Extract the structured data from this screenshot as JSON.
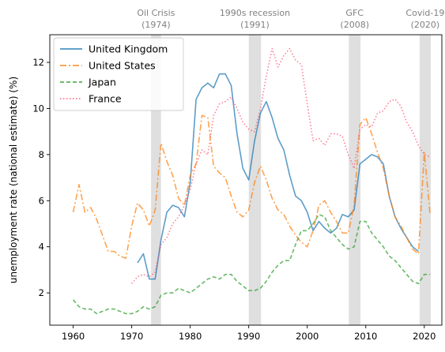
{
  "chart_data": {
    "type": "line",
    "title": "",
    "xlabel": "",
    "ylabel": "unemployment rate (national estimate) (%)",
    "xlim": [
      1956,
      2023
    ],
    "ylim": [
      0.6,
      13.2
    ],
    "xticks": [
      1960,
      1970,
      1980,
      1990,
      2000,
      2010,
      2020
    ],
    "yticks": [
      2,
      4,
      6,
      8,
      10,
      12
    ],
    "grid": false,
    "legend_position": "top-left",
    "events": [
      {
        "name": "Oil Crisis",
        "year_label": "(1974)",
        "start": 1973.3,
        "end": 1975.0
      },
      {
        "name": "1990s recession",
        "year_label": "(1991)",
        "start": 1990.0,
        "end": 1992.1
      },
      {
        "name": "GFC",
        "year_label": "(2008)",
        "start": 2007.1,
        "end": 2009.1
      },
      {
        "name": "Covid-19",
        "year_label": "(2020)",
        "start": 2019.2,
        "end": 2021.1
      }
    ],
    "series": [
      {
        "name": "United Kingdom",
        "color": "#1f77b4",
        "style": "solid",
        "x": [
          1971,
          1972,
          1973,
          1974,
          1975,
          1976,
          1977,
          1978,
          1979,
          1980,
          1981,
          1982,
          1983,
          1984,
          1985,
          1986,
          1987,
          1988,
          1989,
          1990,
          1991,
          1992,
          1993,
          1994,
          1995,
          1996,
          1997,
          1998,
          1999,
          2000,
          2001,
          2002,
          2003,
          2004,
          2005,
          2006,
          2007,
          2008,
          2009,
          2010,
          2011,
          2012,
          2013,
          2014,
          2015,
          2016,
          2017,
          2018,
          2019
        ],
        "y": [
          3.3,
          3.7,
          2.6,
          2.6,
          4.3,
          5.5,
          5.8,
          5.7,
          5.3,
          6.8,
          10.4,
          10.9,
          11.1,
          10.9,
          11.5,
          11.5,
          11.0,
          8.9,
          7.4,
          6.9,
          8.6,
          9.8,
          10.3,
          9.6,
          8.7,
          8.2,
          7.1,
          6.2,
          6.0,
          5.5,
          4.7,
          5.1,
          4.8,
          4.6,
          4.8,
          5.4,
          5.3,
          5.6,
          7.6,
          7.8,
          8.0,
          7.9,
          7.6,
          6.2,
          5.3,
          4.8,
          4.4,
          4.0,
          3.8
        ]
      },
      {
        "name": "United States",
        "color": "#ff7f0e",
        "style": "dashdot",
        "x": [
          1960,
          1961,
          1962,
          1963,
          1964,
          1965,
          1966,
          1967,
          1968,
          1969,
          1970,
          1971,
          1972,
          1973,
          1974,
          1975,
          1976,
          1977,
          1978,
          1979,
          1980,
          1981,
          1982,
          1983,
          1984,
          1985,
          1986,
          1987,
          1988,
          1989,
          1990,
          1991,
          1992,
          1993,
          1994,
          1995,
          1996,
          1997,
          1998,
          1999,
          2000,
          2001,
          2002,
          2003,
          2004,
          2005,
          2006,
          2007,
          2008,
          2009,
          2010,
          2011,
          2012,
          2013,
          2014,
          2015,
          2016,
          2017,
          2018,
          2019,
          2020,
          2021
        ],
        "y": [
          5.5,
          6.7,
          5.5,
          5.7,
          5.2,
          4.5,
          3.8,
          3.8,
          3.6,
          3.5,
          4.9,
          5.9,
          5.6,
          4.9,
          5.6,
          8.5,
          7.7,
          7.1,
          6.1,
          5.8,
          7.1,
          7.6,
          9.7,
          9.6,
          7.5,
          7.2,
          7.0,
          6.2,
          5.5,
          5.3,
          5.6,
          6.8,
          7.5,
          6.9,
          6.1,
          5.6,
          5.4,
          4.9,
          4.5,
          4.2,
          4.0,
          4.7,
          5.8,
          6.0,
          5.5,
          5.1,
          4.6,
          4.6,
          5.8,
          9.3,
          9.6,
          8.9,
          8.1,
          7.4,
          6.2,
          5.3,
          4.9,
          4.4,
          3.9,
          3.7,
          8.1,
          5.4
        ]
      },
      {
        "name": "Japan",
        "color": "#2ca02c",
        "style": "dashed",
        "x": [
          1960,
          1961,
          1962,
          1963,
          1964,
          1965,
          1966,
          1967,
          1968,
          1969,
          1970,
          1971,
          1972,
          1973,
          1974,
          1975,
          1976,
          1977,
          1978,
          1979,
          1980,
          1981,
          1982,
          1983,
          1984,
          1985,
          1986,
          1987,
          1988,
          1989,
          1990,
          1991,
          1992,
          1993,
          1994,
          1995,
          1996,
          1997,
          1998,
          1999,
          2000,
          2001,
          2002,
          2003,
          2004,
          2005,
          2006,
          2007,
          2008,
          2009,
          2010,
          2011,
          2012,
          2013,
          2014,
          2015,
          2016,
          2017,
          2018,
          2019,
          2020,
          2021
        ],
        "y": [
          1.7,
          1.4,
          1.3,
          1.3,
          1.1,
          1.2,
          1.3,
          1.3,
          1.2,
          1.1,
          1.1,
          1.2,
          1.4,
          1.3,
          1.4,
          1.9,
          2.0,
          2.0,
          2.2,
          2.1,
          2.0,
          2.2,
          2.4,
          2.6,
          2.7,
          2.6,
          2.8,
          2.8,
          2.5,
          2.3,
          2.1,
          2.1,
          2.2,
          2.5,
          2.9,
          3.2,
          3.4,
          3.4,
          4.1,
          4.7,
          4.7,
          5.0,
          5.4,
          5.3,
          4.7,
          4.4,
          4.1,
          3.9,
          4.0,
          5.1,
          5.1,
          4.6,
          4.3,
          4.0,
          3.6,
          3.4,
          3.1,
          2.8,
          2.5,
          2.4,
          2.8,
          2.8
        ]
      },
      {
        "name": "France",
        "color": "#ff4d6d",
        "style": "dotted",
        "x": [
          1970,
          1971,
          1972,
          1973,
          1974,
          1975,
          1976,
          1977,
          1978,
          1979,
          1980,
          1981,
          1982,
          1983,
          1984,
          1985,
          1986,
          1987,
          1988,
          1989,
          1990,
          1991,
          1992,
          1993,
          1994,
          1995,
          1996,
          1997,
          1998,
          1999,
          2000,
          2001,
          2002,
          2003,
          2004,
          2005,
          2006,
          2007,
          2008,
          2009,
          2010,
          2011,
          2012,
          2013,
          2014,
          2015,
          2016,
          2017,
          2018,
          2019,
          2020,
          2021
        ],
        "y": [
          2.4,
          2.7,
          2.8,
          2.7,
          2.9,
          4.1,
          4.4,
          5.0,
          5.3,
          5.8,
          6.5,
          7.6,
          8.2,
          8.0,
          9.7,
          10.2,
          10.3,
          10.5,
          10.0,
          9.4,
          9.1,
          9.0,
          10.0,
          11.4,
          12.6,
          11.8,
          12.3,
          12.6,
          12.1,
          11.9,
          10.2,
          8.6,
          8.7,
          8.4,
          8.9,
          8.9,
          8.8,
          8.0,
          7.4,
          9.1,
          9.3,
          9.2,
          9.8,
          9.9,
          10.3,
          10.4,
          10.1,
          9.4,
          9.0,
          8.4,
          8.0,
          7.9
        ]
      }
    ]
  }
}
